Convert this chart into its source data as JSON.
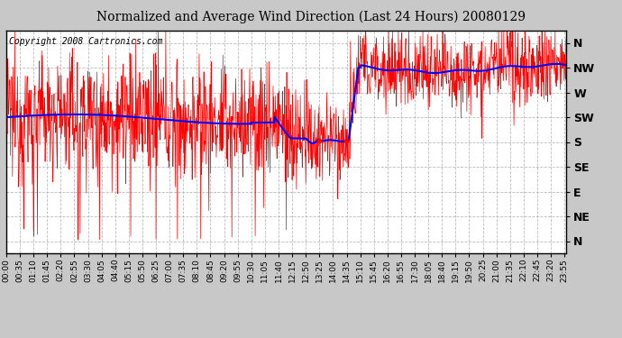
{
  "title": "Normalized and Average Wind Direction (Last 24 Hours) 20080129",
  "copyright": "Copyright 2008 Cartronics.com",
  "bg_color": "#c8c8c8",
  "plot_bg_color": "#ffffff",
  "grid_color": "#aaaaaa",
  "red_color": "#ff0000",
  "blue_color": "#0000ff",
  "ytick_labels": [
    "N",
    "NW",
    "W",
    "SW",
    "S",
    "SE",
    "E",
    "NE",
    "N"
  ],
  "ytick_values": [
    8,
    7,
    6,
    5,
    4,
    3,
    2,
    1,
    0
  ],
  "ylim": [
    -0.5,
    8.5
  ],
  "xtick_labels": [
    "00:00",
    "00:35",
    "01:10",
    "01:45",
    "02:20",
    "02:55",
    "03:30",
    "04:05",
    "04:40",
    "05:15",
    "05:50",
    "06:25",
    "07:00",
    "07:35",
    "08:10",
    "08:45",
    "09:20",
    "09:55",
    "10:30",
    "11:05",
    "11:40",
    "12:15",
    "12:50",
    "13:25",
    "14:00",
    "14:35",
    "15:10",
    "15:45",
    "16:20",
    "16:55",
    "17:30",
    "18:05",
    "18:40",
    "19:15",
    "19:50",
    "20:25",
    "21:00",
    "21:35",
    "22:10",
    "22:45",
    "23:20",
    "23:55"
  ],
  "num_points": 1440,
  "noise_seed": 12345
}
